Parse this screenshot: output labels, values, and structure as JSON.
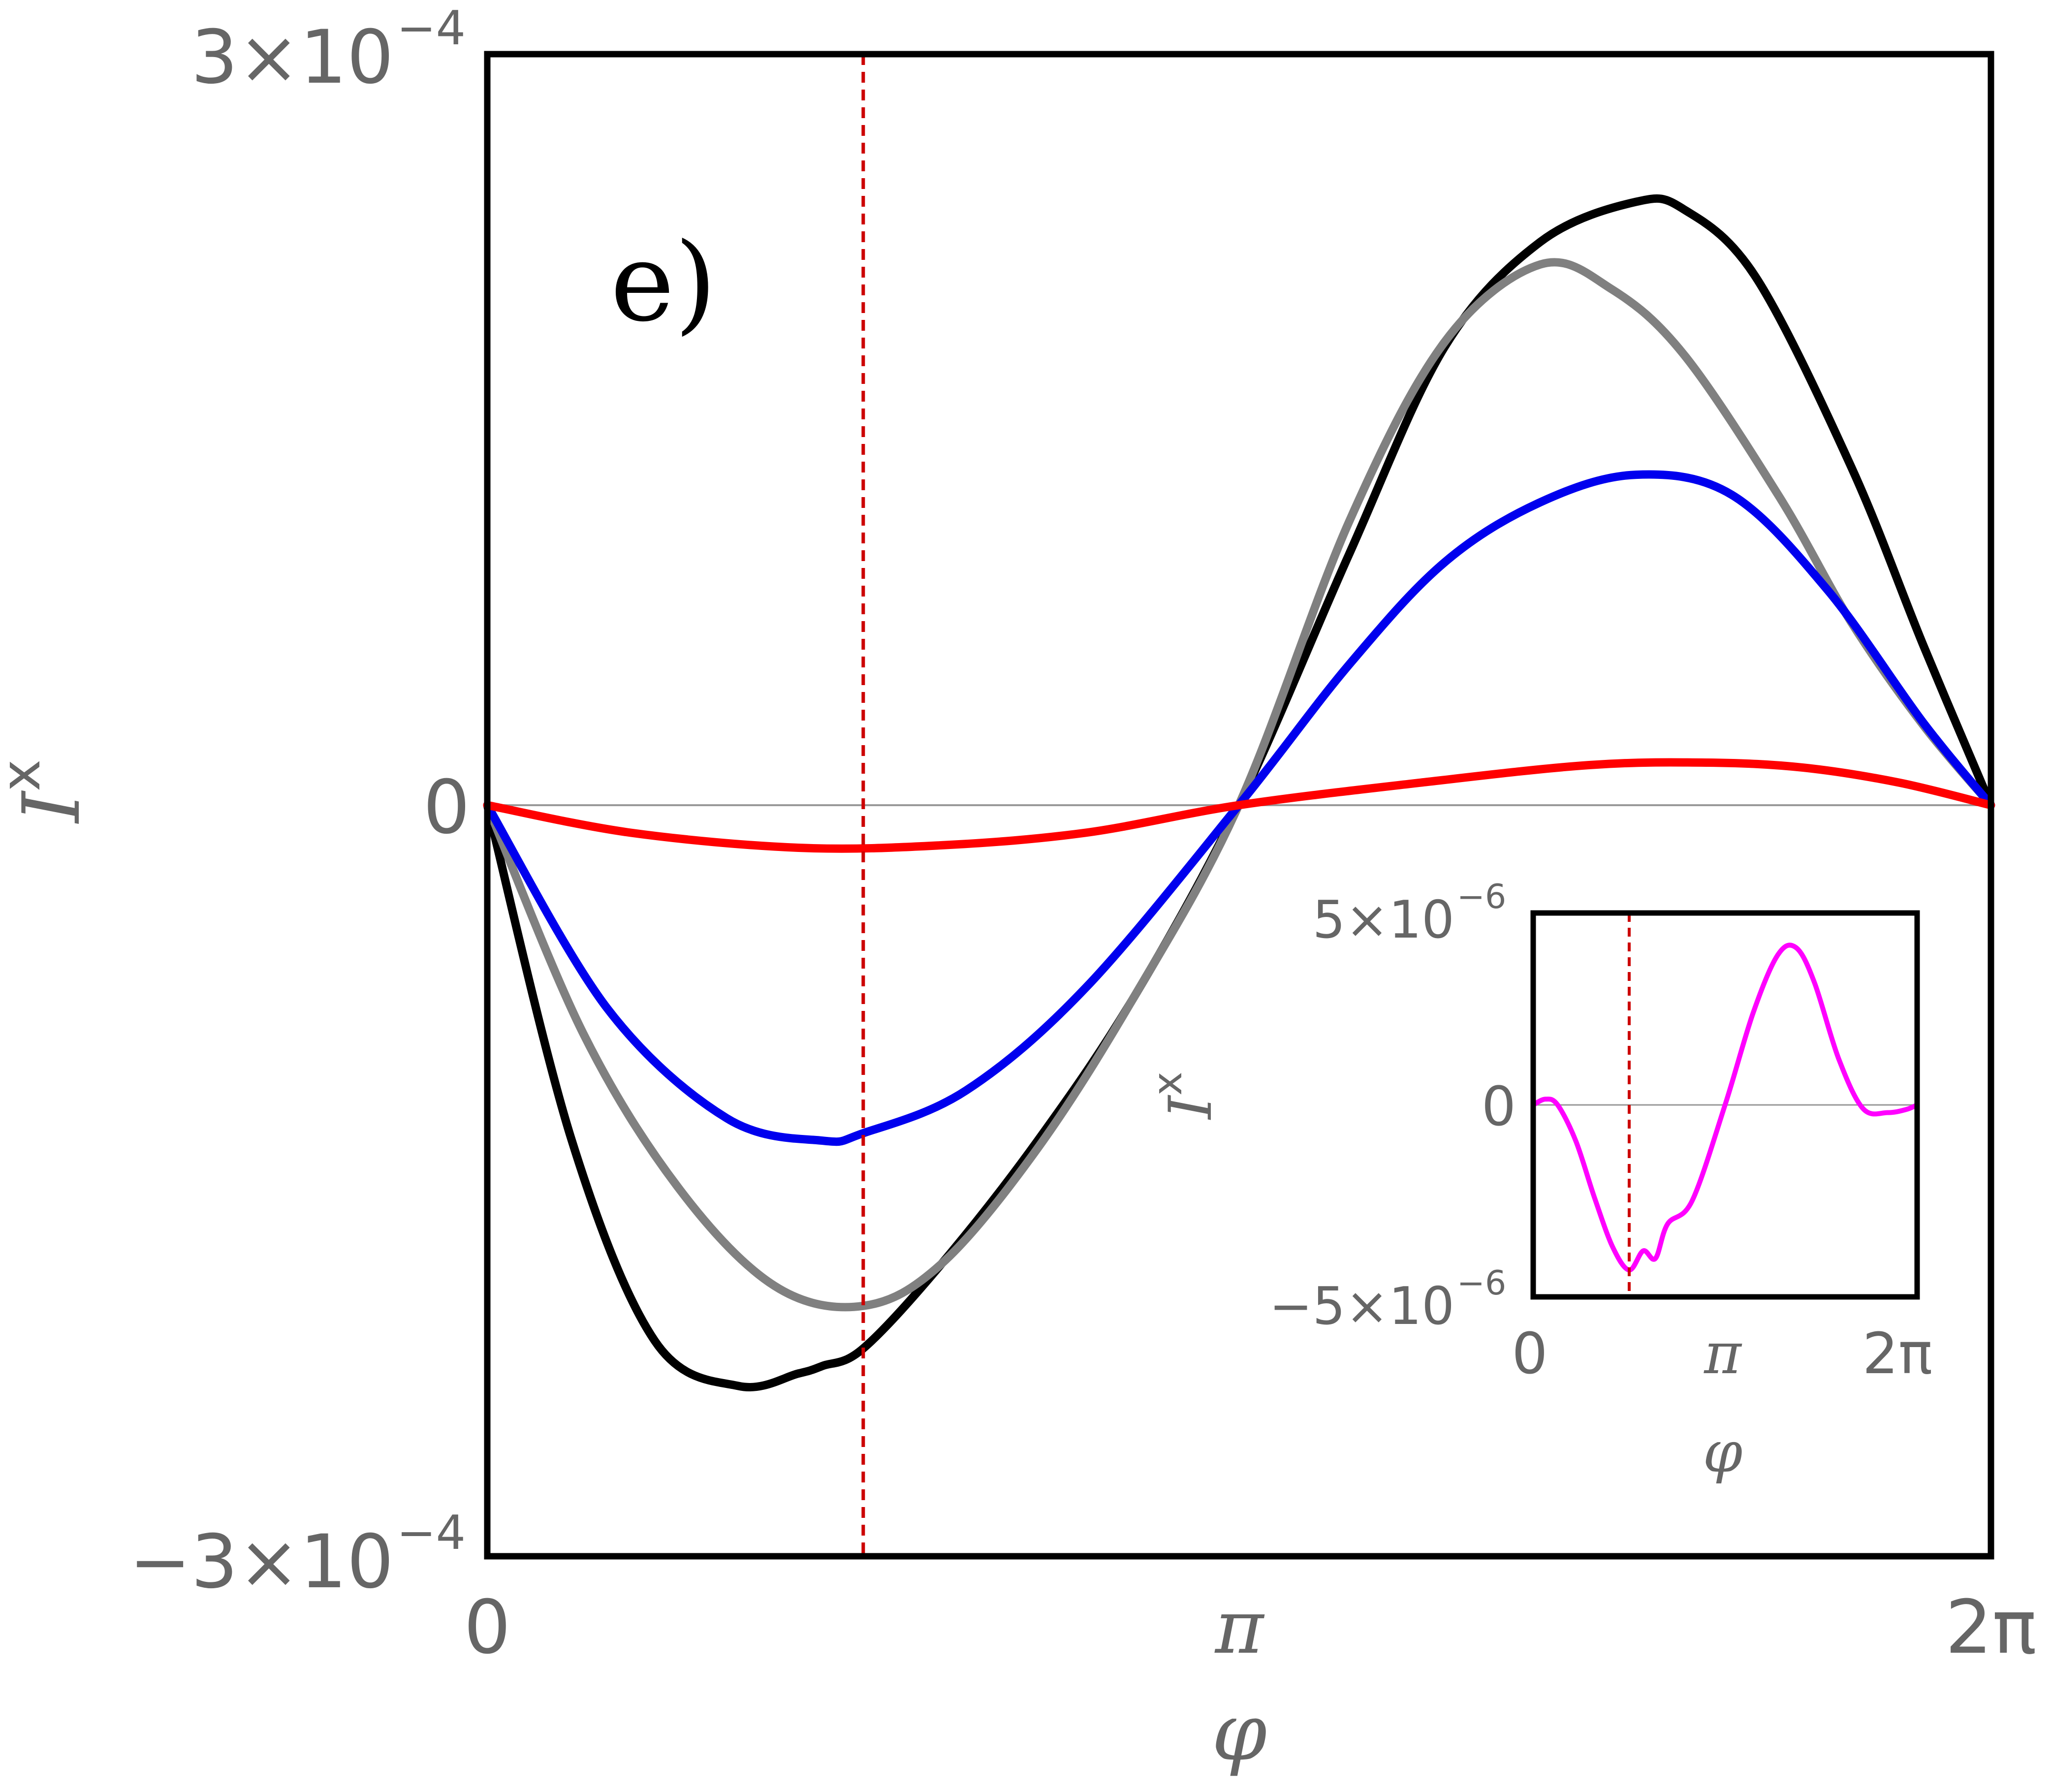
{
  "chart_data": [
    {
      "type": "line",
      "panel_label": "e)",
      "xlabel": "φ",
      "ylabel": "I",
      "ylabel_sup": "x",
      "xlim": [
        0,
        6.283185307
      ],
      "ylim": [
        -0.0003,
        0.0003
      ],
      "xticks": [
        {
          "value": 0,
          "label": "0"
        },
        {
          "value": 3.141592654,
          "label": "π"
        },
        {
          "value": 6.283185307,
          "label": "2π"
        }
      ],
      "yticks": [
        {
          "value": 0.0003,
          "label": "3×10",
          "exp": "−4"
        },
        {
          "value": 0,
          "label": "0",
          "exp": ""
        },
        {
          "value": -0.0003,
          "label": "−3×10",
          "exp": "−4"
        }
      ],
      "zero_line": true,
      "vline": {
        "x": 1.571,
        "color": "#cc0000",
        "style": "dashed"
      },
      "series": [
        {
          "name": "black",
          "color": "#000000",
          "x": [
            0,
            0.35,
            0.7,
            1.05,
            1.3,
            1.4,
            1.571,
            1.9,
            2.3,
            2.7,
            3.14,
            3.6,
            4.0,
            4.4,
            4.8,
            5.0,
            5.3,
            5.7,
            6.0,
            6.283
          ],
          "values": [
            0,
            -0.000133,
            -0.000214,
            -0.000232,
            -0.000227,
            -0.000224,
            -0.000217,
            -0.000183,
            -0.000134,
            -7.7e-05,
            0,
            0.0001,
            0.000183,
            0.000225,
            0.000241,
            0.000238,
            0.000211,
            0.000135,
            6.4e-05,
            0
          ]
        },
        {
          "name": "gray",
          "color": "#808080",
          "x": [
            0,
            0.4,
            0.8,
            1.2,
            1.571,
            1.9,
            2.3,
            2.7,
            3.14,
            3.6,
            4.0,
            4.4,
            4.7,
            5.0,
            5.4,
            5.7,
            6.0,
            6.283
          ],
          "values": [
            0,
            -9.1e-05,
            -0.000153,
            -0.000192,
            -0.0002,
            -0.000183,
            -0.000137,
            -7.7e-05,
            0,
            0.000113,
            0.000185,
            0.000216,
            0.000206,
            0.00018,
            0.000123,
            7.3e-05,
            3.2e-05,
            0
          ]
        },
        {
          "name": "blue",
          "color": "#0000ee",
          "x": [
            0,
            0.5,
            1.0,
            1.4,
            1.571,
            2.0,
            2.5,
            3.14,
            3.6,
            4.0,
            4.4,
            4.8,
            5.2,
            5.6,
            6.0,
            6.283
          ],
          "values": [
            0,
            -8.1e-05,
            -0.000125,
            -0.000134,
            -0.000131,
            -0.000114,
            -7.3e-05,
            0,
            5.6e-05,
            9.7e-05,
            0.000121,
            0.000132,
            0.000124,
            8.6e-05,
            3.3e-05,
            0
          ]
        },
        {
          "name": "red",
          "color": "#ff0000",
          "x": [
            0,
            0.6,
            1.3,
            1.9,
            2.5,
            3.14,
            3.9,
            4.6,
            5.1,
            5.5,
            5.9,
            6.283
          ],
          "values": [
            0,
            -1.1e-05,
            -1.7e-05,
            -1.6e-05,
            -1.1e-05,
            0,
            9e-06,
            1.6e-05,
            1.7e-05,
            1.5e-05,
            9e-06,
            0
          ]
        }
      ]
    },
    {
      "type": "line",
      "role": "inset",
      "xlabel": "φ",
      "ylabel": "I",
      "ylabel_sup": "x",
      "xlim": [
        0,
        6.283185307
      ],
      "ylim": [
        -5e-06,
        5e-06
      ],
      "xticks": [
        {
          "value": 0,
          "label": "0"
        },
        {
          "value": 3.141592654,
          "label": "π"
        },
        {
          "value": 6.283185307,
          "label": "2π"
        }
      ],
      "yticks": [
        {
          "value": 5e-06,
          "label": "5×10",
          "exp": "−6"
        },
        {
          "value": 0,
          "label": "0",
          "exp": ""
        },
        {
          "value": -5e-06,
          "label": "−5×10",
          "exp": "−6"
        }
      ],
      "zero_line": true,
      "vline": {
        "x": 1.571,
        "color": "#cc0000",
        "style": "dashed"
      },
      "series": [
        {
          "name": "magenta",
          "color": "#ff00ff",
          "x": [
            0,
            0.2,
            0.4,
            0.7,
            1.0,
            1.3,
            1.571,
            1.8,
            2.0,
            2.2,
            2.6,
            3.14,
            3.6,
            4.0,
            4.3,
            4.6,
            5.0,
            5.4,
            5.8,
            6.1,
            6.283
          ],
          "values": [
            0,
            1.5e-07,
            0,
            -9.5e-07,
            -2.4e-06,
            -3.7e-06,
            -4.3e-06,
            -3.8e-06,
            -4e-06,
            -3.1e-06,
            -2.5e-06,
            0,
            2.4e-06,
            3.9e-06,
            4.1e-06,
            3.2e-06,
            1.2e-06,
            -1e-07,
            -2e-07,
            -1.2e-07,
            0
          ]
        }
      ]
    }
  ]
}
